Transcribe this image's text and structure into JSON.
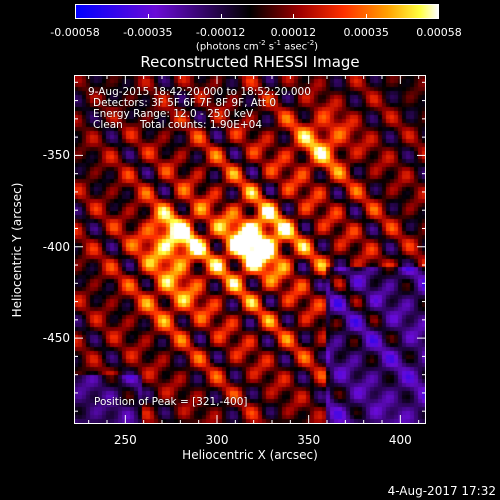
{
  "colorbar": {
    "tick_labels": [
      "-0.00058",
      "-0.00035",
      "-0.00012",
      "0.00012",
      "0.00035",
      "0.00058"
    ],
    "unit_text": "(photons cm",
    "unit_exp1": "-2",
    "unit_mid": " s",
    "unit_exp2": "-1",
    "unit_mid2": " asec",
    "unit_exp3": "-2",
    "unit_end": ")"
  },
  "chart_data": {
    "type": "heatmap",
    "title": "Reconstructed RHESSI Image",
    "xlabel": "Heliocentric X (arcsec)",
    "ylabel": "Heliocentric Y (arcsec)",
    "xlim": [
      222,
      414
    ],
    "ylim": [
      -497,
      -306
    ],
    "x_ticks": [
      250,
      300,
      350,
      400
    ],
    "y_ticks": [
      -350,
      -400,
      -450
    ],
    "color_range": [
      -0.00058,
      0.00058
    ],
    "colormap": "blue-black-red-yellow-white",
    "peak": [
      321,
      -400
    ],
    "sources": [
      {
        "x": 321,
        "y": -398,
        "intensity": 0.00058
      },
      {
        "x": 276,
        "y": -396,
        "intensity": 0.00045
      },
      {
        "x": 357,
        "y": -343,
        "intensity": 0.0003
      },
      {
        "x": 276,
        "y": -427,
        "intensity": 0.0002
      }
    ],
    "annotations": {
      "time_range": "9-Aug-2015 18:42:20.000 to 18:52:20.000",
      "detectors": "Detectors: 3F 5F 6F 7F 8F 9F, Att 0",
      "energy": "Energy Range: 12.0 - 25.0 keV",
      "method": "Clean",
      "total_counts": "Total counts: 1.90E+04",
      "peak_text": "Position of Peak = [321,-400]"
    }
  },
  "footer": {
    "datestamp": "4-Aug-2017 17:32"
  }
}
